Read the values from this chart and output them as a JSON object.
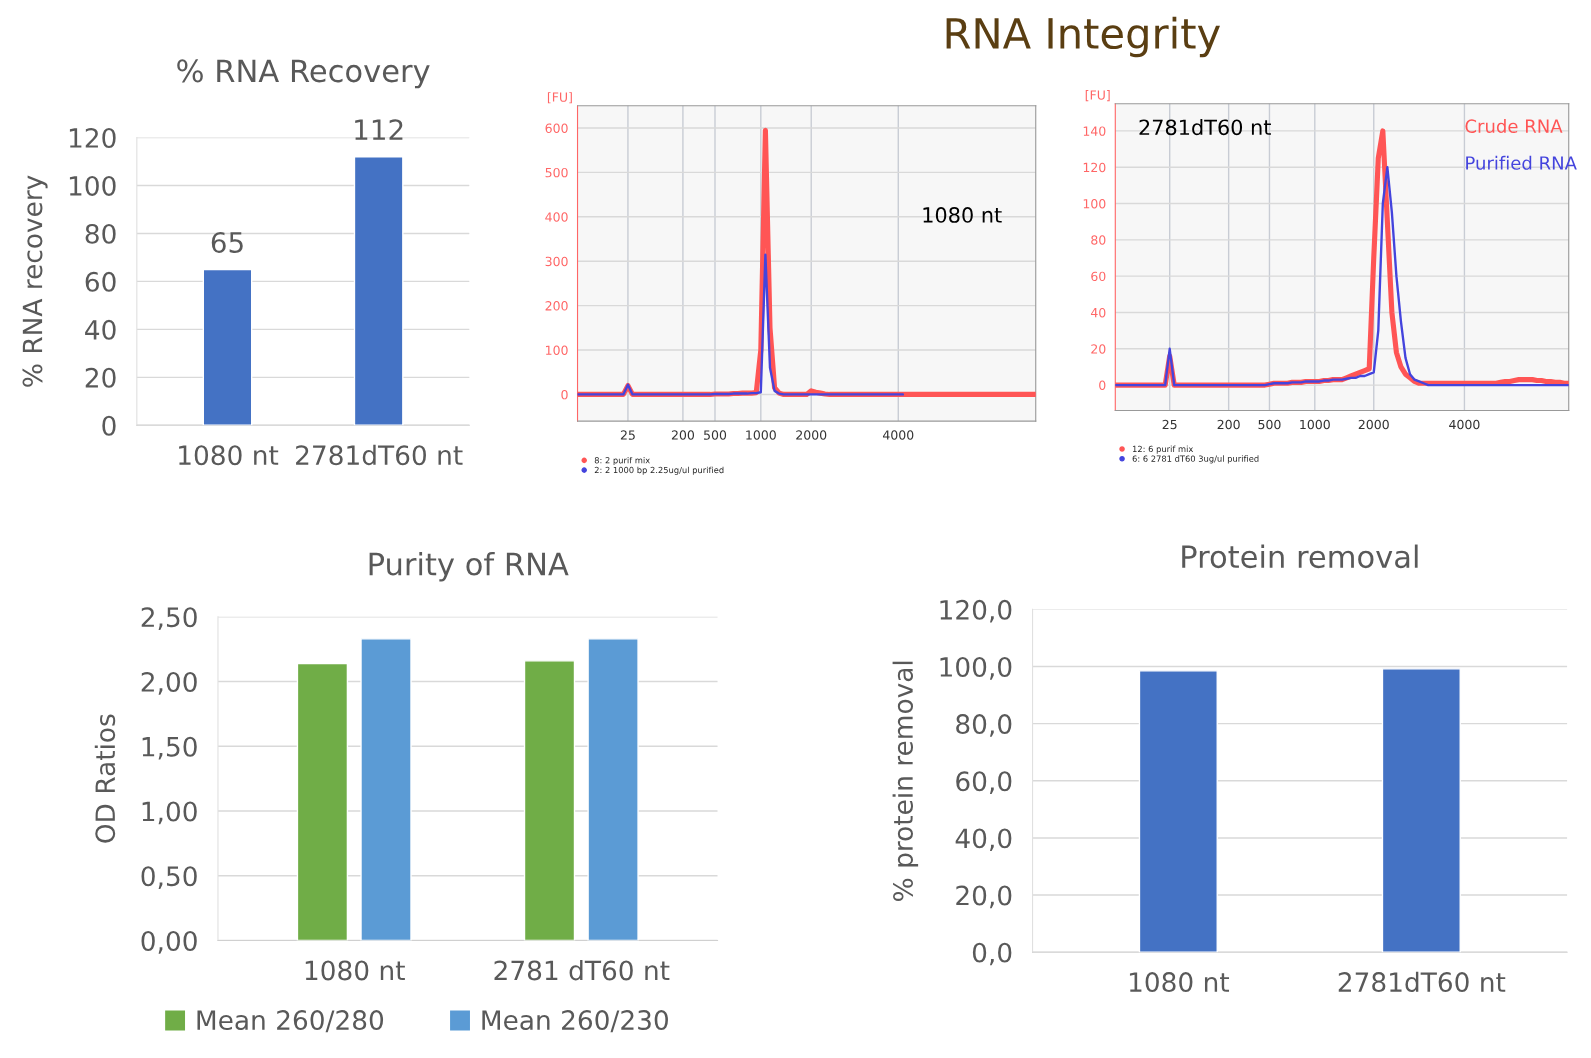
{
  "chart_data": [
    {
      "type": "bar",
      "title": "% RNA Recovery",
      "ylabel": "% RNA recovery",
      "categories": [
        "1080 nt",
        "2781dT60 nt"
      ],
      "series": [
        {
          "color": "#4472c4",
          "values": [
            65,
            112
          ]
        }
      ],
      "ylim": [
        0,
        120
      ],
      "yticks": [
        0,
        20,
        40,
        60,
        80,
        100,
        120
      ],
      "grid": "y",
      "data_labels": true
    },
    {
      "type": "line",
      "title": "RNA Integrity",
      "ylabel": "[FU]",
      "annotations": [
        "1080 nt"
      ],
      "categories": [
        null,
        null,
        null,
        null,
        null,
        null,
        null,
        null,
        null,
        null,
        null,
        "25",
        null,
        null,
        null,
        null,
        null,
        null,
        null,
        null,
        null,
        null,
        null,
        "200",
        null,
        null,
        null,
        null,
        null,
        null,
        "500",
        null,
        null,
        null,
        null,
        null,
        null,
        null,
        null,
        null,
        "1000",
        null,
        null,
        null,
        null,
        null,
        null,
        null,
        null,
        null,
        null,
        "2000",
        null,
        null,
        null,
        null,
        null,
        null,
        null,
        null,
        null,
        null,
        null,
        null,
        null,
        null,
        null,
        null,
        null,
        null,
        "4000",
        null,
        null,
        null,
        null,
        null,
        null,
        null,
        null,
        null,
        null,
        null,
        null,
        null,
        null,
        null,
        null,
        null,
        null,
        null,
        null,
        null,
        null,
        null,
        null,
        null,
        null,
        null,
        null,
        null,
        null
      ],
      "series": [
        {
          "name": "8: 2 purif mix",
          "color": "#ff5555",
          "values": [
            0,
            0,
            0,
            0,
            0,
            0,
            0,
            0,
            0,
            0,
            0,
            20,
            0,
            0,
            0,
            0,
            0,
            0,
            0,
            0,
            0,
            0,
            0,
            0,
            0,
            0,
            0,
            0,
            0,
            0,
            1,
            1,
            1,
            1,
            2,
            2,
            3,
            3,
            3,
            4,
            100,
            595,
            150,
            15,
            3,
            0,
            0,
            0,
            0,
            0,
            0,
            8,
            5,
            3,
            1,
            0,
            0,
            0,
            0,
            0,
            0,
            0,
            0,
            0,
            0,
            0,
            0,
            0,
            0,
            0,
            0,
            0,
            0,
            0,
            0,
            0,
            0,
            0,
            0,
            0,
            0,
            0,
            0,
            0,
            0,
            0,
            0,
            0,
            0,
            0,
            0,
            0,
            0,
            0,
            0,
            0,
            0,
            0,
            0,
            0,
            0
          ]
        },
        {
          "name": "2: 2 1000 bp 2.25ug/ul purified",
          "color": "#4444dd",
          "values": [
            0,
            0,
            0,
            0,
            0,
            0,
            0,
            0,
            0,
            0,
            0,
            22,
            0,
            0,
            0,
            0,
            0,
            0,
            0,
            0,
            0,
            0,
            0,
            0,
            0,
            0,
            0,
            0,
            0,
            0,
            1,
            1,
            1,
            1,
            2,
            2,
            2,
            2,
            3,
            3,
            5,
            315,
            60,
            8,
            2,
            0,
            0,
            0,
            0,
            0,
            0,
            0,
            0,
            0,
            0,
            0,
            0,
            0,
            0,
            0,
            0,
            0,
            0,
            0,
            0,
            0,
            0,
            0,
            0,
            0,
            0,
            0,
            null,
            null,
            null,
            null,
            null,
            null,
            null,
            null,
            null,
            null,
            null,
            null,
            null,
            null,
            null,
            null,
            null,
            null,
            null,
            null,
            null,
            null,
            null,
            null,
            null,
            null,
            null,
            null,
            null
          ]
        }
      ],
      "ylim": [
        -60,
        650
      ],
      "yticks": [
        0,
        100,
        200,
        300,
        400,
        500,
        600
      ],
      "grid": true,
      "legend": "bottom left"
    },
    {
      "type": "line",
      "ylabel": "[FU]",
      "annotations": [
        "2781dT60 nt",
        "Crude RNA",
        "Purified RNA"
      ],
      "categories": [
        null,
        null,
        null,
        null,
        null,
        null,
        null,
        null,
        null,
        null,
        null,
        null,
        "25",
        null,
        null,
        null,
        null,
        null,
        null,
        null,
        null,
        null,
        null,
        null,
        null,
        "200",
        null,
        null,
        null,
        null,
        null,
        null,
        null,
        null,
        "500",
        null,
        null,
        null,
        null,
        null,
        null,
        null,
        null,
        null,
        "1000",
        null,
        null,
        null,
        null,
        null,
        null,
        null,
        null,
        null,
        null,
        null,
        null,
        "2000",
        null,
        null,
        null,
        null,
        null,
        null,
        null,
        null,
        null,
        null,
        null,
        null,
        null,
        null,
        null,
        null,
        null,
        null,
        null,
        "4000",
        null,
        null,
        null,
        null,
        null,
        null,
        null,
        null,
        null,
        null,
        null,
        null,
        null,
        null,
        null,
        null,
        null,
        null,
        null,
        null,
        null,
        null,
        null
      ],
      "series": [
        {
          "name": "12: 6 purif mix",
          "color": "#ff5555",
          "values": [
            0,
            0,
            0,
            0,
            0,
            0,
            0,
            0,
            0,
            0,
            0,
            0,
            16,
            0,
            0,
            0,
            0,
            0,
            0,
            0,
            0,
            0,
            0,
            0,
            0,
            0,
            0,
            0,
            0,
            0,
            0,
            0,
            0,
            0,
            0.5,
            1,
            1,
            1,
            1,
            1.5,
            1.5,
            1.5,
            2,
            2,
            2,
            2,
            2.5,
            2.5,
            3,
            3,
            3,
            4,
            5,
            6,
            7,
            8,
            9,
            70,
            125,
            140,
            90,
            40,
            18,
            10,
            6,
            4,
            2,
            1,
            1,
            1,
            1,
            1,
            1,
            1,
            1,
            1,
            1,
            1,
            1,
            1,
            1,
            1,
            1,
            1,
            1,
            1.5,
            2,
            2,
            2.5,
            3,
            3,
            3,
            3,
            2.5,
            2.5,
            2,
            2,
            1.5,
            1.5,
            1,
            1
          ]
        },
        {
          "name": "6: 6 2781 dT60 3ug/ul purified",
          "color": "#4444dd",
          "values": [
            0,
            0,
            0,
            0,
            0,
            0,
            0,
            0,
            0,
            0,
            0,
            0,
            20,
            0,
            0,
            0,
            0,
            0,
            0,
            0,
            0,
            0,
            0,
            0,
            0,
            0,
            0,
            0,
            0,
            0,
            0,
            0,
            0,
            0,
            0.5,
            1,
            1,
            1,
            1,
            1.5,
            1.5,
            1.5,
            2,
            2,
            2,
            2,
            2.5,
            2.5,
            3,
            3,
            3,
            3.5,
            4,
            4,
            5,
            5,
            6,
            7,
            30,
            100,
            120,
            95,
            60,
            35,
            15,
            6,
            3,
            2,
            1,
            0,
            0,
            0,
            0,
            0,
            0,
            0,
            0,
            0,
            0,
            0,
            0,
            0,
            0,
            0,
            0,
            0,
            0,
            0,
            0,
            0,
            0,
            0,
            0,
            0,
            0,
            0,
            0,
            0,
            0,
            0,
            0
          ]
        }
      ],
      "ylim": [
        -14,
        155
      ],
      "yticks": [
        0,
        20,
        40,
        60,
        80,
        100,
        120,
        140
      ],
      "grid": true,
      "legend": "bottom left"
    },
    {
      "type": "bar",
      "title": "Purity of RNA",
      "ylabel": "OD Ratios",
      "categories": [
        "1080 nt",
        "2781 dT60 nt"
      ],
      "series": [
        {
          "name": "Mean 260/280",
          "color": "#70ad47",
          "values": [
            2.14,
            2.16
          ]
        },
        {
          "name": "Mean 260/230",
          "color": "#5b9bd5",
          "values": [
            2.33,
            2.33
          ]
        }
      ],
      "ylim": [
        0,
        2.5
      ],
      "yticks": [
        {
          "value": 0,
          "label": "0,00"
        },
        {
          "value": 0.5,
          "label": "0,50"
        },
        {
          "value": 1,
          "label": "1,00"
        },
        {
          "value": 1.5,
          "label": "1,50"
        },
        {
          "value": 2,
          "label": "2,00"
        },
        {
          "value": 2.5,
          "label": "2,50"
        }
      ],
      "grid": "y",
      "legend": "bottom"
    },
    {
      "type": "bar",
      "title": "Protein removal",
      "ylabel": "% protein removal",
      "categories": [
        "1080 nt",
        "2781dT60 nt"
      ],
      "series": [
        {
          "color": "#4472c4",
          "values": [
            98.5,
            99.2
          ]
        }
      ],
      "ylim": [
        0,
        120
      ],
      "yticks": [
        {
          "value": 0,
          "label": "0,0"
        },
        {
          "value": 20,
          "label": "20,0"
        },
        {
          "value": 40,
          "label": "40,0"
        },
        {
          "value": 60,
          "label": "60,0"
        },
        {
          "value": 80,
          "label": "80,0"
        },
        {
          "value": 100,
          "label": "100,0"
        },
        {
          "value": 120,
          "label": "120,0"
        }
      ],
      "grid": "y"
    }
  ]
}
